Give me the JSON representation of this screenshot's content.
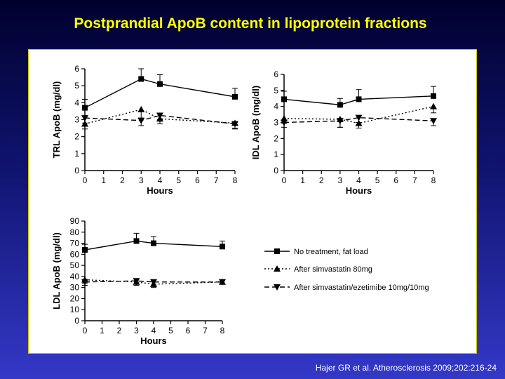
{
  "title": "Postprandial ApoB content in lipoprotein fractions",
  "citation": "Hajer GR et al. Atherosclerosis 2009;202:216-24",
  "legend": [
    {
      "label": "No treatment, fat load",
      "marker": "square",
      "dash": "solid"
    },
    {
      "label": "After simvastatin 80mg",
      "marker": "triangle-up",
      "dash": "dotted"
    },
    {
      "label": "After simvastatin/ezetimibe 10mg/10mg",
      "marker": "triangle-down",
      "dash": "dashed"
    }
  ],
  "chart_data": [
    {
      "type": "line",
      "ylabel": "TRL ApoB (mg/dl)",
      "xlabel": "Hours",
      "xlim": [
        0,
        8
      ],
      "ylim": [
        0,
        6
      ],
      "xticks": [
        0,
        1,
        2,
        3,
        4,
        5,
        6,
        7,
        8
      ],
      "yticks": [
        0,
        1,
        2,
        3,
        4,
        5,
        6
      ],
      "x": [
        0,
        3,
        4,
        8
      ],
      "series": [
        {
          "name": "No treatment, fat load",
          "values": [
            3.7,
            5.4,
            5.1,
            4.35
          ],
          "err": [
            0.5,
            0.6,
            0.55,
            0.5
          ]
        },
        {
          "name": "After simvastatin 80mg",
          "values": [
            2.75,
            3.6,
            3.05,
            2.8
          ],
          "err": [
            0.3,
            0.5,
            0.3,
            0.3
          ]
        },
        {
          "name": "After simvastatin/ezetimibe 10mg/10mg",
          "values": [
            3.1,
            2.95,
            3.25,
            2.75
          ],
          "err": [
            0.3,
            0.3,
            0.25,
            0.3
          ]
        }
      ]
    },
    {
      "type": "line",
      "ylabel": "IDL ApoB (mg/dl)",
      "xlabel": "Hours",
      "xlim": [
        0,
        8
      ],
      "ylim": [
        0,
        6
      ],
      "xticks": [
        0,
        1,
        2,
        3,
        4,
        5,
        6,
        7,
        8
      ],
      "yticks": [
        0,
        1,
        2,
        3,
        4,
        5,
        6
      ],
      "x": [
        0,
        3,
        4,
        8
      ],
      "series": [
        {
          "name": "No treatment, fat load",
          "values": [
            4.45,
            4.1,
            4.45,
            4.65
          ],
          "err": [
            0.5,
            0.4,
            0.6,
            0.6
          ]
        },
        {
          "name": "After simvastatin 80mg",
          "values": [
            3.25,
            3.2,
            2.95,
            4.0
          ],
          "err": [
            0.3,
            0.5,
            0.3,
            0.4
          ]
        },
        {
          "name": "After simvastatin/ezetimibe 10mg/10mg",
          "values": [
            3.0,
            3.1,
            3.3,
            3.1
          ],
          "err": [
            0.3,
            0.4,
            0.3,
            0.3
          ]
        }
      ]
    },
    {
      "type": "line",
      "ylabel": "LDL ApoB (mg/dl)",
      "xlabel": "Hours",
      "xlim": [
        0,
        8
      ],
      "ylim": [
        0,
        90
      ],
      "xticks": [
        0,
        1,
        2,
        3,
        4,
        5,
        6,
        7,
        8
      ],
      "yticks": [
        0,
        10,
        20,
        30,
        40,
        50,
        60,
        70,
        80,
        90
      ],
      "x": [
        0,
        3,
        4,
        8
      ],
      "series": [
        {
          "name": "No treatment, fat load",
          "values": [
            64,
            72,
            70,
            67
          ],
          "err": [
            5,
            7,
            6,
            5
          ]
        },
        {
          "name": "After simvastatin 80mg",
          "values": [
            37,
            35,
            33,
            35
          ],
          "err": [
            3,
            3,
            3,
            2
          ]
        },
        {
          "name": "After simvastatin/ezetimibe 10mg/10mg",
          "values": [
            35,
            36,
            35,
            35
          ],
          "err": [
            3,
            3,
            3,
            2
          ]
        }
      ]
    }
  ]
}
